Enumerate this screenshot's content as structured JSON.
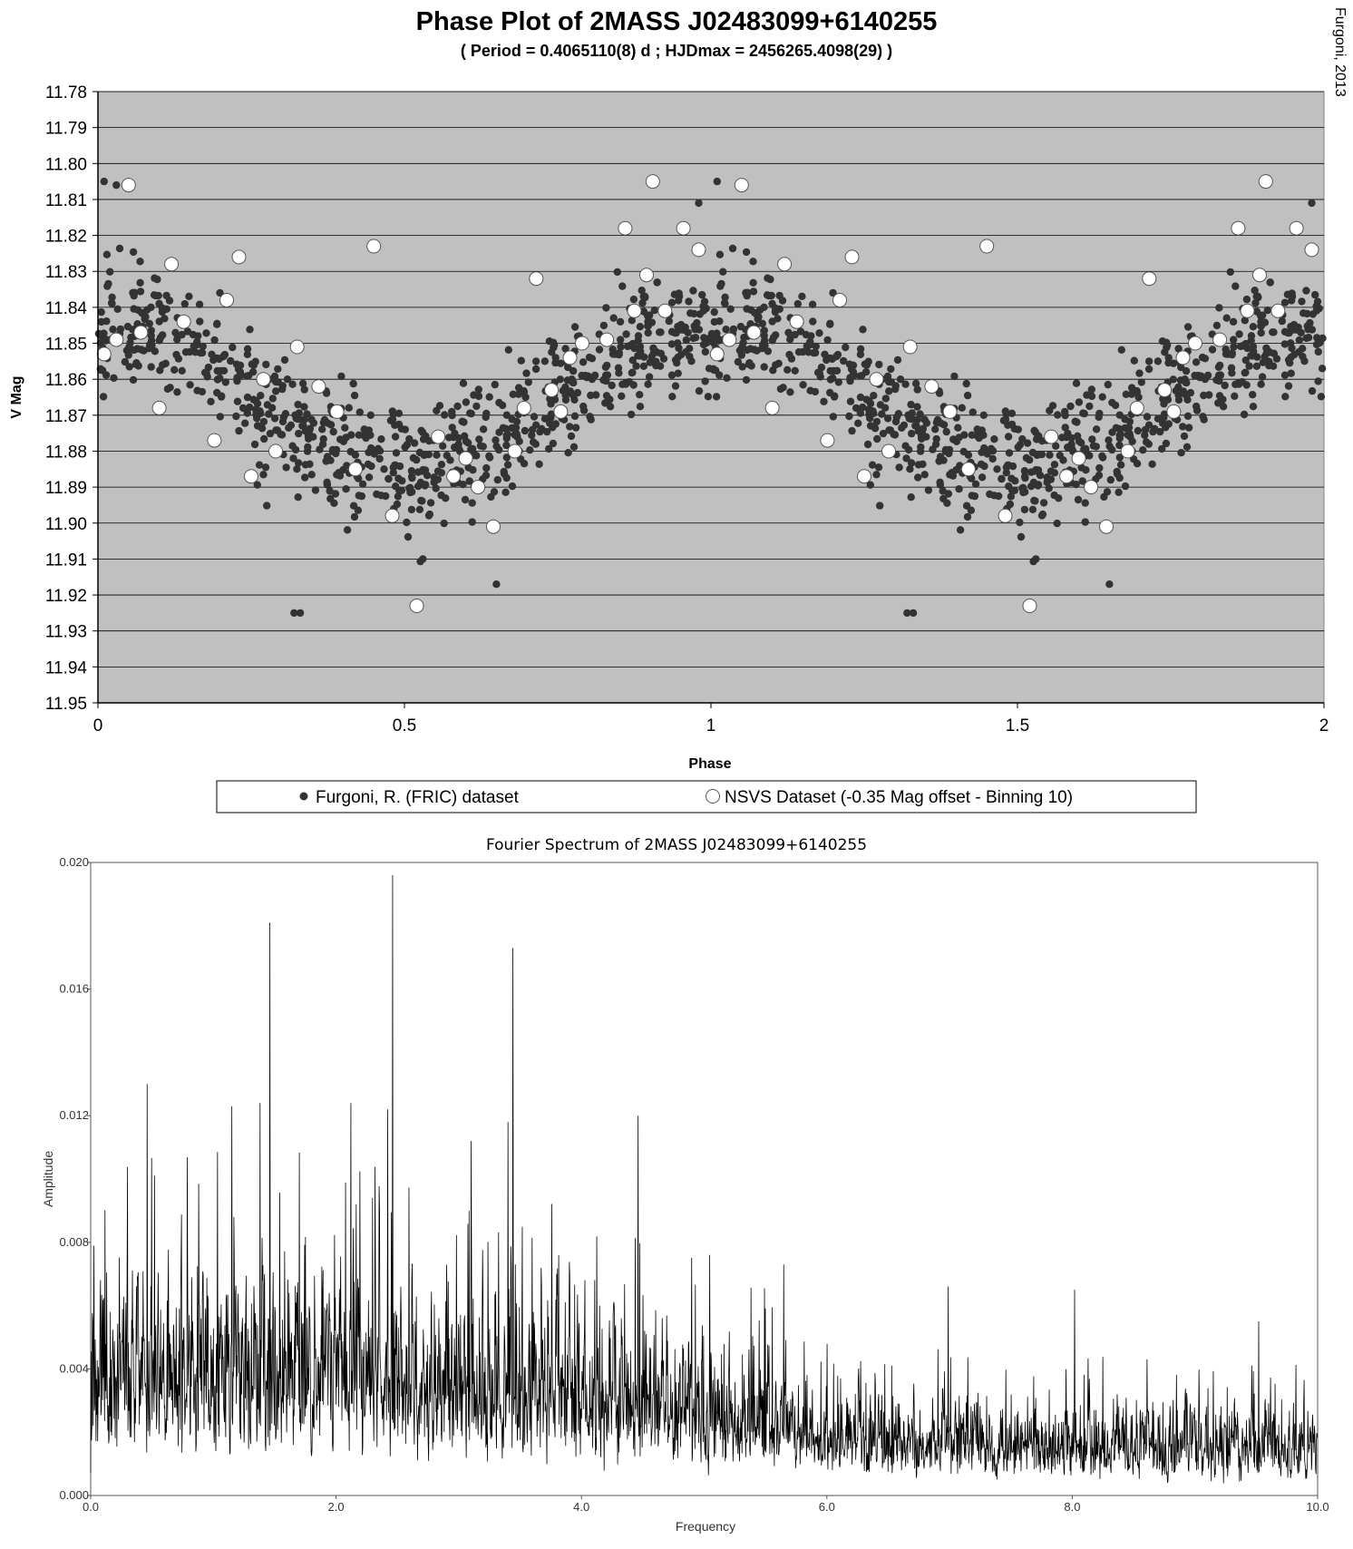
{
  "chart_data": [
    {
      "type": "scatter",
      "title": "Phase Plot of 2MASS J02483099+6140255",
      "subtitle": "( Period = 0.4065110(8) d ; HJDmax = 2456265.4098(29) )",
      "xlabel": "Phase",
      "ylabel": "V Mag",
      "xlim": [
        0,
        2
      ],
      "ylim": [
        11.78,
        11.95
      ],
      "y_inverted": true,
      "x_ticks": [
        "0",
        "0.5",
        "1",
        "1.5",
        "2"
      ],
      "y_ticks": [
        "11.78",
        "11.79",
        "11.80",
        "11.81",
        "11.82",
        "11.83",
        "11.84",
        "11.85",
        "11.86",
        "11.87",
        "11.88",
        "11.89",
        "11.90",
        "11.91",
        "11.92",
        "11.93",
        "11.94",
        "11.95"
      ],
      "grid": "horizontal",
      "background": "#c0c0c0",
      "legend_position": "bottom",
      "series": [
        {
          "name": "Furgoni, R. (FRIC) dataset",
          "marker": "filled-circle",
          "color": "#333333",
          "model": {
            "mean_mag": 11.865,
            "semi_amplitude": 0.019,
            "max_phase": 0.0,
            "scatter_sd": 0.0085,
            "points_per_cycle": 780,
            "repeated_cycles": 2
          },
          "points": [
            [
              0.01,
              11.805
            ],
            [
              0.03,
              11.806
            ],
            [
              0.32,
              11.925
            ],
            [
              0.33,
              11.925
            ],
            [
              0.53,
              11.91
            ],
            [
              0.65,
              11.917
            ],
            [
              0.98,
              11.811
            ],
            [
              1.01,
              11.805
            ],
            [
              1.32,
              11.925
            ],
            [
              1.33,
              11.925
            ],
            [
              1.53,
              11.91
            ],
            [
              1.65,
              11.917
            ],
            [
              1.98,
              11.811
            ]
          ]
        },
        {
          "name": "NSVS Dataset (-0.35 Mag offset - Binning 10)",
          "marker": "open-circle",
          "color": "#ffffff",
          "points": [
            [
              0.01,
              11.853
            ],
            [
              0.03,
              11.849
            ],
            [
              0.05,
              11.806
            ],
            [
              0.07,
              11.847
            ],
            [
              0.1,
              11.868
            ],
            [
              0.12,
              11.828
            ],
            [
              0.14,
              11.844
            ],
            [
              0.19,
              11.877
            ],
            [
              0.21,
              11.838
            ],
            [
              0.23,
              11.826
            ],
            [
              0.25,
              11.887
            ],
            [
              0.27,
              11.86
            ],
            [
              0.29,
              11.88
            ],
            [
              0.325,
              11.851
            ],
            [
              0.36,
              11.862
            ],
            [
              0.39,
              11.869
            ],
            [
              0.42,
              11.885
            ],
            [
              0.45,
              11.823
            ],
            [
              0.48,
              11.898
            ],
            [
              0.52,
              11.923
            ],
            [
              0.555,
              11.876
            ],
            [
              0.58,
              11.887
            ],
            [
              0.6,
              11.882
            ],
            [
              0.62,
              11.89
            ],
            [
              0.645,
              11.901
            ],
            [
              0.68,
              11.88
            ],
            [
              0.695,
              11.868
            ],
            [
              0.715,
              11.832
            ],
            [
              0.74,
              11.863
            ],
            [
              0.755,
              11.869
            ],
            [
              0.77,
              11.854
            ],
            [
              0.79,
              11.85
            ],
            [
              0.83,
              11.849
            ],
            [
              0.86,
              11.818
            ],
            [
              0.875,
              11.841
            ],
            [
              0.895,
              11.831
            ],
            [
              0.905,
              11.805
            ],
            [
              0.925,
              11.841
            ],
            [
              0.955,
              11.818
            ],
            [
              0.98,
              11.824
            ],
            [
              1.01,
              11.853
            ],
            [
              1.03,
              11.849
            ],
            [
              1.05,
              11.806
            ],
            [
              1.07,
              11.847
            ],
            [
              1.1,
              11.868
            ],
            [
              1.12,
              11.828
            ],
            [
              1.14,
              11.844
            ],
            [
              1.19,
              11.877
            ],
            [
              1.21,
              11.838
            ],
            [
              1.23,
              11.826
            ],
            [
              1.25,
              11.887
            ],
            [
              1.27,
              11.86
            ],
            [
              1.29,
              11.88
            ],
            [
              1.325,
              11.851
            ],
            [
              1.36,
              11.862
            ],
            [
              1.39,
              11.869
            ],
            [
              1.42,
              11.885
            ],
            [
              1.45,
              11.823
            ],
            [
              1.48,
              11.898
            ],
            [
              1.52,
              11.923
            ],
            [
              1.555,
              11.876
            ],
            [
              1.58,
              11.887
            ],
            [
              1.6,
              11.882
            ],
            [
              1.62,
              11.89
            ],
            [
              1.645,
              11.901
            ],
            [
              1.68,
              11.88
            ],
            [
              1.695,
              11.868
            ],
            [
              1.715,
              11.832
            ],
            [
              1.74,
              11.863
            ],
            [
              1.755,
              11.869
            ],
            [
              1.77,
              11.854
            ],
            [
              1.79,
              11.85
            ],
            [
              1.83,
              11.849
            ],
            [
              1.86,
              11.818
            ],
            [
              1.875,
              11.841
            ],
            [
              1.895,
              11.831
            ],
            [
              1.905,
              11.805
            ],
            [
              1.925,
              11.841
            ],
            [
              1.955,
              11.818
            ],
            [
              1.98,
              11.824
            ]
          ]
        }
      ]
    },
    {
      "type": "line",
      "title": "Fourier Spectrum of 2MASS J02483099+6140255",
      "xlabel": "Frequency",
      "ylabel": "Amplitude",
      "xlim": [
        0.0,
        10.0
      ],
      "ylim": [
        0.0,
        0.02
      ],
      "x_ticks": [
        "0.0",
        "2.0",
        "4.0",
        "6.0",
        "8.0",
        "10.0"
      ],
      "y_ticks": [
        "0.000",
        "0.004",
        "0.008",
        "0.012",
        "0.016",
        "0.020"
      ],
      "grid": "none",
      "series": [
        {
          "color": "#000000",
          "model": {
            "samples": 3000,
            "envelope": [
              [
                0.0,
                0.0068
              ],
              [
                2.0,
                0.0068
              ],
              [
                2.5,
                0.0065
              ],
              [
                4.0,
                0.0058
              ],
              [
                4.6,
                0.0052
              ],
              [
                5.6,
                0.0042
              ],
              [
                6.0,
                0.0032
              ],
              [
                10.0,
                0.0026
              ]
            ]
          },
          "peaks": [
            [
              0.46,
              0.013
            ],
            [
              1.15,
              0.0123
            ],
            [
              1.38,
              0.0124
            ],
            [
              1.46,
              0.0181
            ],
            [
              2.12,
              0.0124
            ],
            [
              2.42,
              0.0122
            ],
            [
              2.46,
              0.0196
            ],
            [
              3.1,
              0.0112
            ],
            [
              3.4,
              0.0118
            ],
            [
              3.44,
              0.0173
            ],
            [
              4.46,
              0.012
            ],
            [
              5.65,
              0.0073
            ],
            [
              6.99,
              0.0066
            ],
            [
              8.02,
              0.0065
            ],
            [
              9.52,
              0.0055
            ]
          ]
        }
      ]
    }
  ],
  "credit": "Furgoni, 2013"
}
